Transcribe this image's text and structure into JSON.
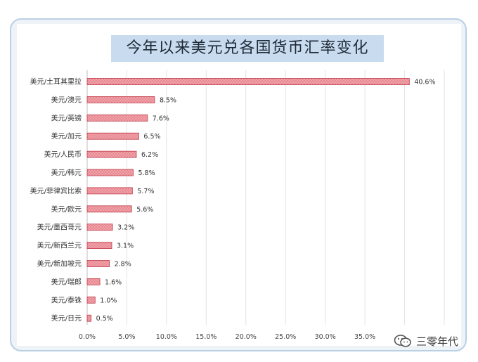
{
  "chart_data": {
    "type": "bar",
    "orientation": "horizontal",
    "title": "今年以来美元兑各国货币汇率变化",
    "categories": [
      "美元/土耳其里拉",
      "美元/澳元",
      "美元/英镑",
      "美元/加元",
      "美元/人民币",
      "美元/韩元",
      "美元/菲律宾比索",
      "美元/欧元",
      "美元/墨西哥元",
      "美元/新西兰元",
      "美元/新加坡元",
      "美元/瑞郎",
      "美元/泰铢",
      "美元/日元"
    ],
    "values": [
      40.6,
      8.5,
      7.6,
      6.5,
      6.2,
      5.8,
      5.7,
      5.6,
      3.2,
      3.1,
      2.8,
      1.6,
      1.0,
      0.5
    ],
    "value_labels": [
      "40.6%",
      "8.5%",
      "7.6%",
      "6.5%",
      "6.2%",
      "5.8%",
      "5.7%",
      "5.6%",
      "3.2%",
      "3.1%",
      "2.8%",
      "1.6%",
      "1.0%",
      "0.5%"
    ],
    "xlim": [
      0,
      45
    ],
    "xticks": [
      0,
      5,
      10,
      15,
      20,
      25,
      30,
      35
    ],
    "xtick_labels": [
      "0.0%",
      "5.0%",
      "10.0%",
      "15.0%",
      "20.0%",
      "25.0%",
      "30.0%",
      "35.0%"
    ],
    "grid": true,
    "bar_color": "#e7707a",
    "bar_edge_color": "#c03a48"
  },
  "watermark": {
    "text": "三零年代",
    "icon": "wechat-icon"
  }
}
